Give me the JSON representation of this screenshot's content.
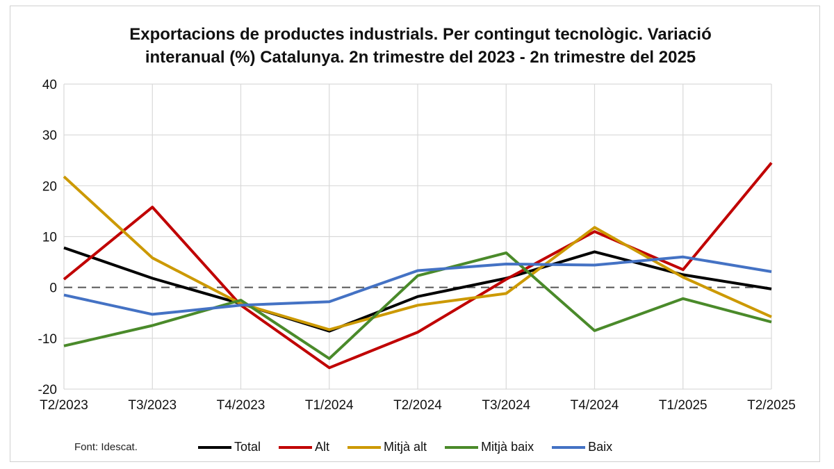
{
  "chart_data": {
    "type": "line",
    "title": "Exportacions de productes industrials. Per contingut tecnològic. Variació interanual (%) Catalunya. 2n trimestre del 2023 - 2n trimestre del 2025",
    "title_lines": [
      "Exportacions de productes industrials. Per contingut tecnològic. Variació",
      "interanual (%) Catalunya. 2n trimestre del 2023 - 2n trimestre del 2025"
    ],
    "xlabel": "",
    "ylabel": "",
    "categories": [
      "T2/2023",
      "T3/2023",
      "T4/2023",
      "T1/2024",
      "T2/2024",
      "T3/2024",
      "T4/2024",
      "T1/2025",
      "T2/2025"
    ],
    "ylim": [
      -20,
      40
    ],
    "yticks": [
      -20,
      -10,
      0,
      10,
      20,
      30,
      40
    ],
    "ytick_labels": [
      "-20",
      "-10",
      "0",
      "10",
      "20",
      "30",
      "40"
    ],
    "grid": true,
    "zero_line": "dashed",
    "legend_position": "bottom",
    "series": [
      {
        "name": "Total",
        "color": "#000000",
        "values": [
          7.8,
          1.8,
          -3.2,
          -8.6,
          -1.8,
          1.8,
          7.0,
          2.5,
          -0.3
        ]
      },
      {
        "name": "Alt",
        "color": "#c00000",
        "values": [
          1.6,
          15.8,
          -3.5,
          -15.8,
          -8.8,
          1.6,
          11.0,
          3.5,
          24.5
        ]
      },
      {
        "name": "Mitjà alt",
        "color": "#cc9900",
        "values": [
          21.8,
          5.8,
          -3.2,
          -8.3,
          -3.5,
          -1.2,
          11.8,
          2.0,
          -5.8
        ]
      },
      {
        "name": "Mitjà baix",
        "color": "#4a8a2a",
        "values": [
          -11.5,
          -7.5,
          -2.5,
          -14.0,
          2.3,
          6.8,
          -8.5,
          -2.2,
          -6.8
        ]
      },
      {
        "name": "Baix",
        "color": "#4472c4",
        "values": [
          -1.5,
          -5.3,
          -3.5,
          -2.8,
          3.3,
          4.6,
          4.4,
          6.0,
          3.1
        ]
      }
    ]
  },
  "source": "Font: Idescat."
}
